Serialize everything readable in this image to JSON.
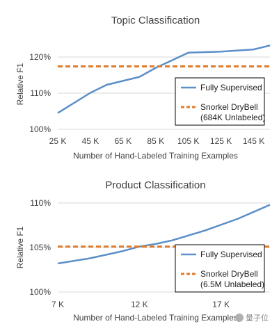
{
  "chart_data": [
    {
      "type": "line",
      "title": "Topic Classification",
      "xlabel": "Number of Hand-Labeled Training Examples",
      "ylabel": "Relative F1",
      "x_ticks": [
        "25 K",
        "45 K",
        "65 K",
        "85 K",
        "105 K",
        "125 K",
        "145 K"
      ],
      "y_ticks": [
        "100%",
        "110%",
        "120%"
      ],
      "xlim": [
        25,
        155
      ],
      "ylim": [
        100,
        125
      ],
      "grid": true,
      "legend": "right",
      "series": [
        {
          "name": "Fully Supervised",
          "style": "solid",
          "color": "#5b8fc9",
          "x": [
            25,
            45,
            55,
            75,
            85,
            105,
            125,
            145,
            155
          ],
          "y": [
            104.5,
            110.1,
            112.3,
            114.5,
            117.0,
            121.2,
            121.5,
            122.1,
            123.2
          ]
        },
        {
          "name": "Snorkel DryBell\n(684K Unlabeled)",
          "legend_lines": [
            "Snorkel DryBell",
            "(684K Unlabeled)"
          ],
          "style": "dashed",
          "color": "#e07b2a",
          "x": [
            25,
            155
          ],
          "y": [
            117.4,
            117.4
          ]
        }
      ]
    },
    {
      "type": "line",
      "title": "Product Classification",
      "xlabel": "Number of Hand-Labeled Training Examples",
      "ylabel": "Relative F1",
      "x_ticks": [
        "7 K",
        "12 K",
        "17 K"
      ],
      "y_ticks": [
        "100%",
        "105%",
        "110%"
      ],
      "xlim": [
        7,
        20
      ],
      "ylim": [
        100,
        110
      ],
      "grid": true,
      "legend": "right",
      "series": [
        {
          "name": "Fully Supervised",
          "style": "solid",
          "color": "#5b8fc9",
          "x": [
            7,
            9,
            11,
            12,
            13,
            14,
            16,
            18,
            20
          ],
          "y": [
            103.2,
            103.8,
            104.6,
            105.1,
            105.4,
            105.8,
            106.9,
            108.2,
            109.8
          ]
        },
        {
          "name": "Snorkel DryBell\n(6.5M Unlabeled)",
          "legend_lines": [
            "Snorkel DryBell",
            "(6.5M Unlabeled)"
          ],
          "style": "dashed",
          "color": "#e07b2a",
          "x": [
            7,
            20
          ],
          "y": [
            105.1,
            105.1
          ]
        }
      ]
    }
  ],
  "watermark": {
    "text": "量子位",
    "icon": "wechat-icon"
  }
}
